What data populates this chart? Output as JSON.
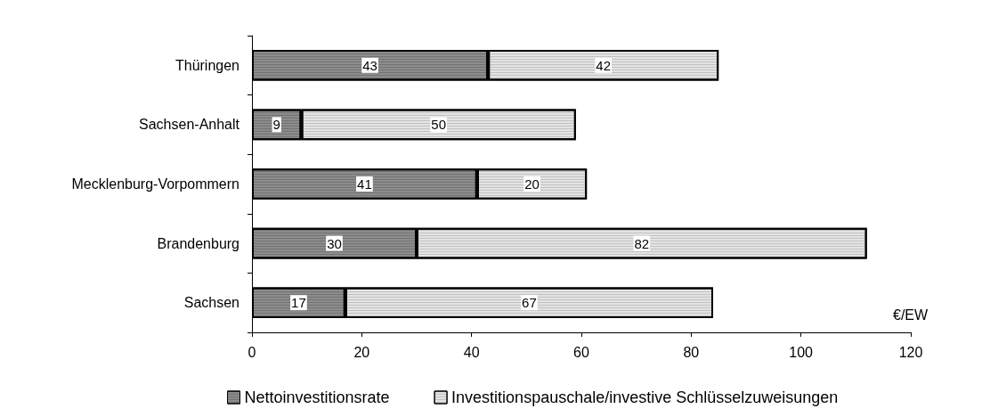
{
  "chart_data": {
    "type": "bar",
    "orientation": "horizontal",
    "stacked": true,
    "data_labels": true,
    "grid": false,
    "legend": "bottom",
    "xlabel": "€/EW",
    "categories": [
      "Thüringen",
      "Sachsen-Anhalt",
      "Mecklenburg-Vorpommern",
      "Brandenburg",
      "Sachsen"
    ],
    "series": [
      {
        "name": "Nettoinvestitionsrate",
        "color": "#8c8c8c",
        "values": [
          43,
          9,
          41,
          30,
          17
        ]
      },
      {
        "name": "Investitionspauschale/investive Schlüsselzuweisungen",
        "color": "#e3e3e3",
        "values": [
          42,
          50,
          20,
          82,
          67
        ]
      }
    ],
    "xlim": [
      0,
      120
    ],
    "xticks": [
      0,
      20,
      40,
      60,
      80,
      100,
      120
    ]
  }
}
